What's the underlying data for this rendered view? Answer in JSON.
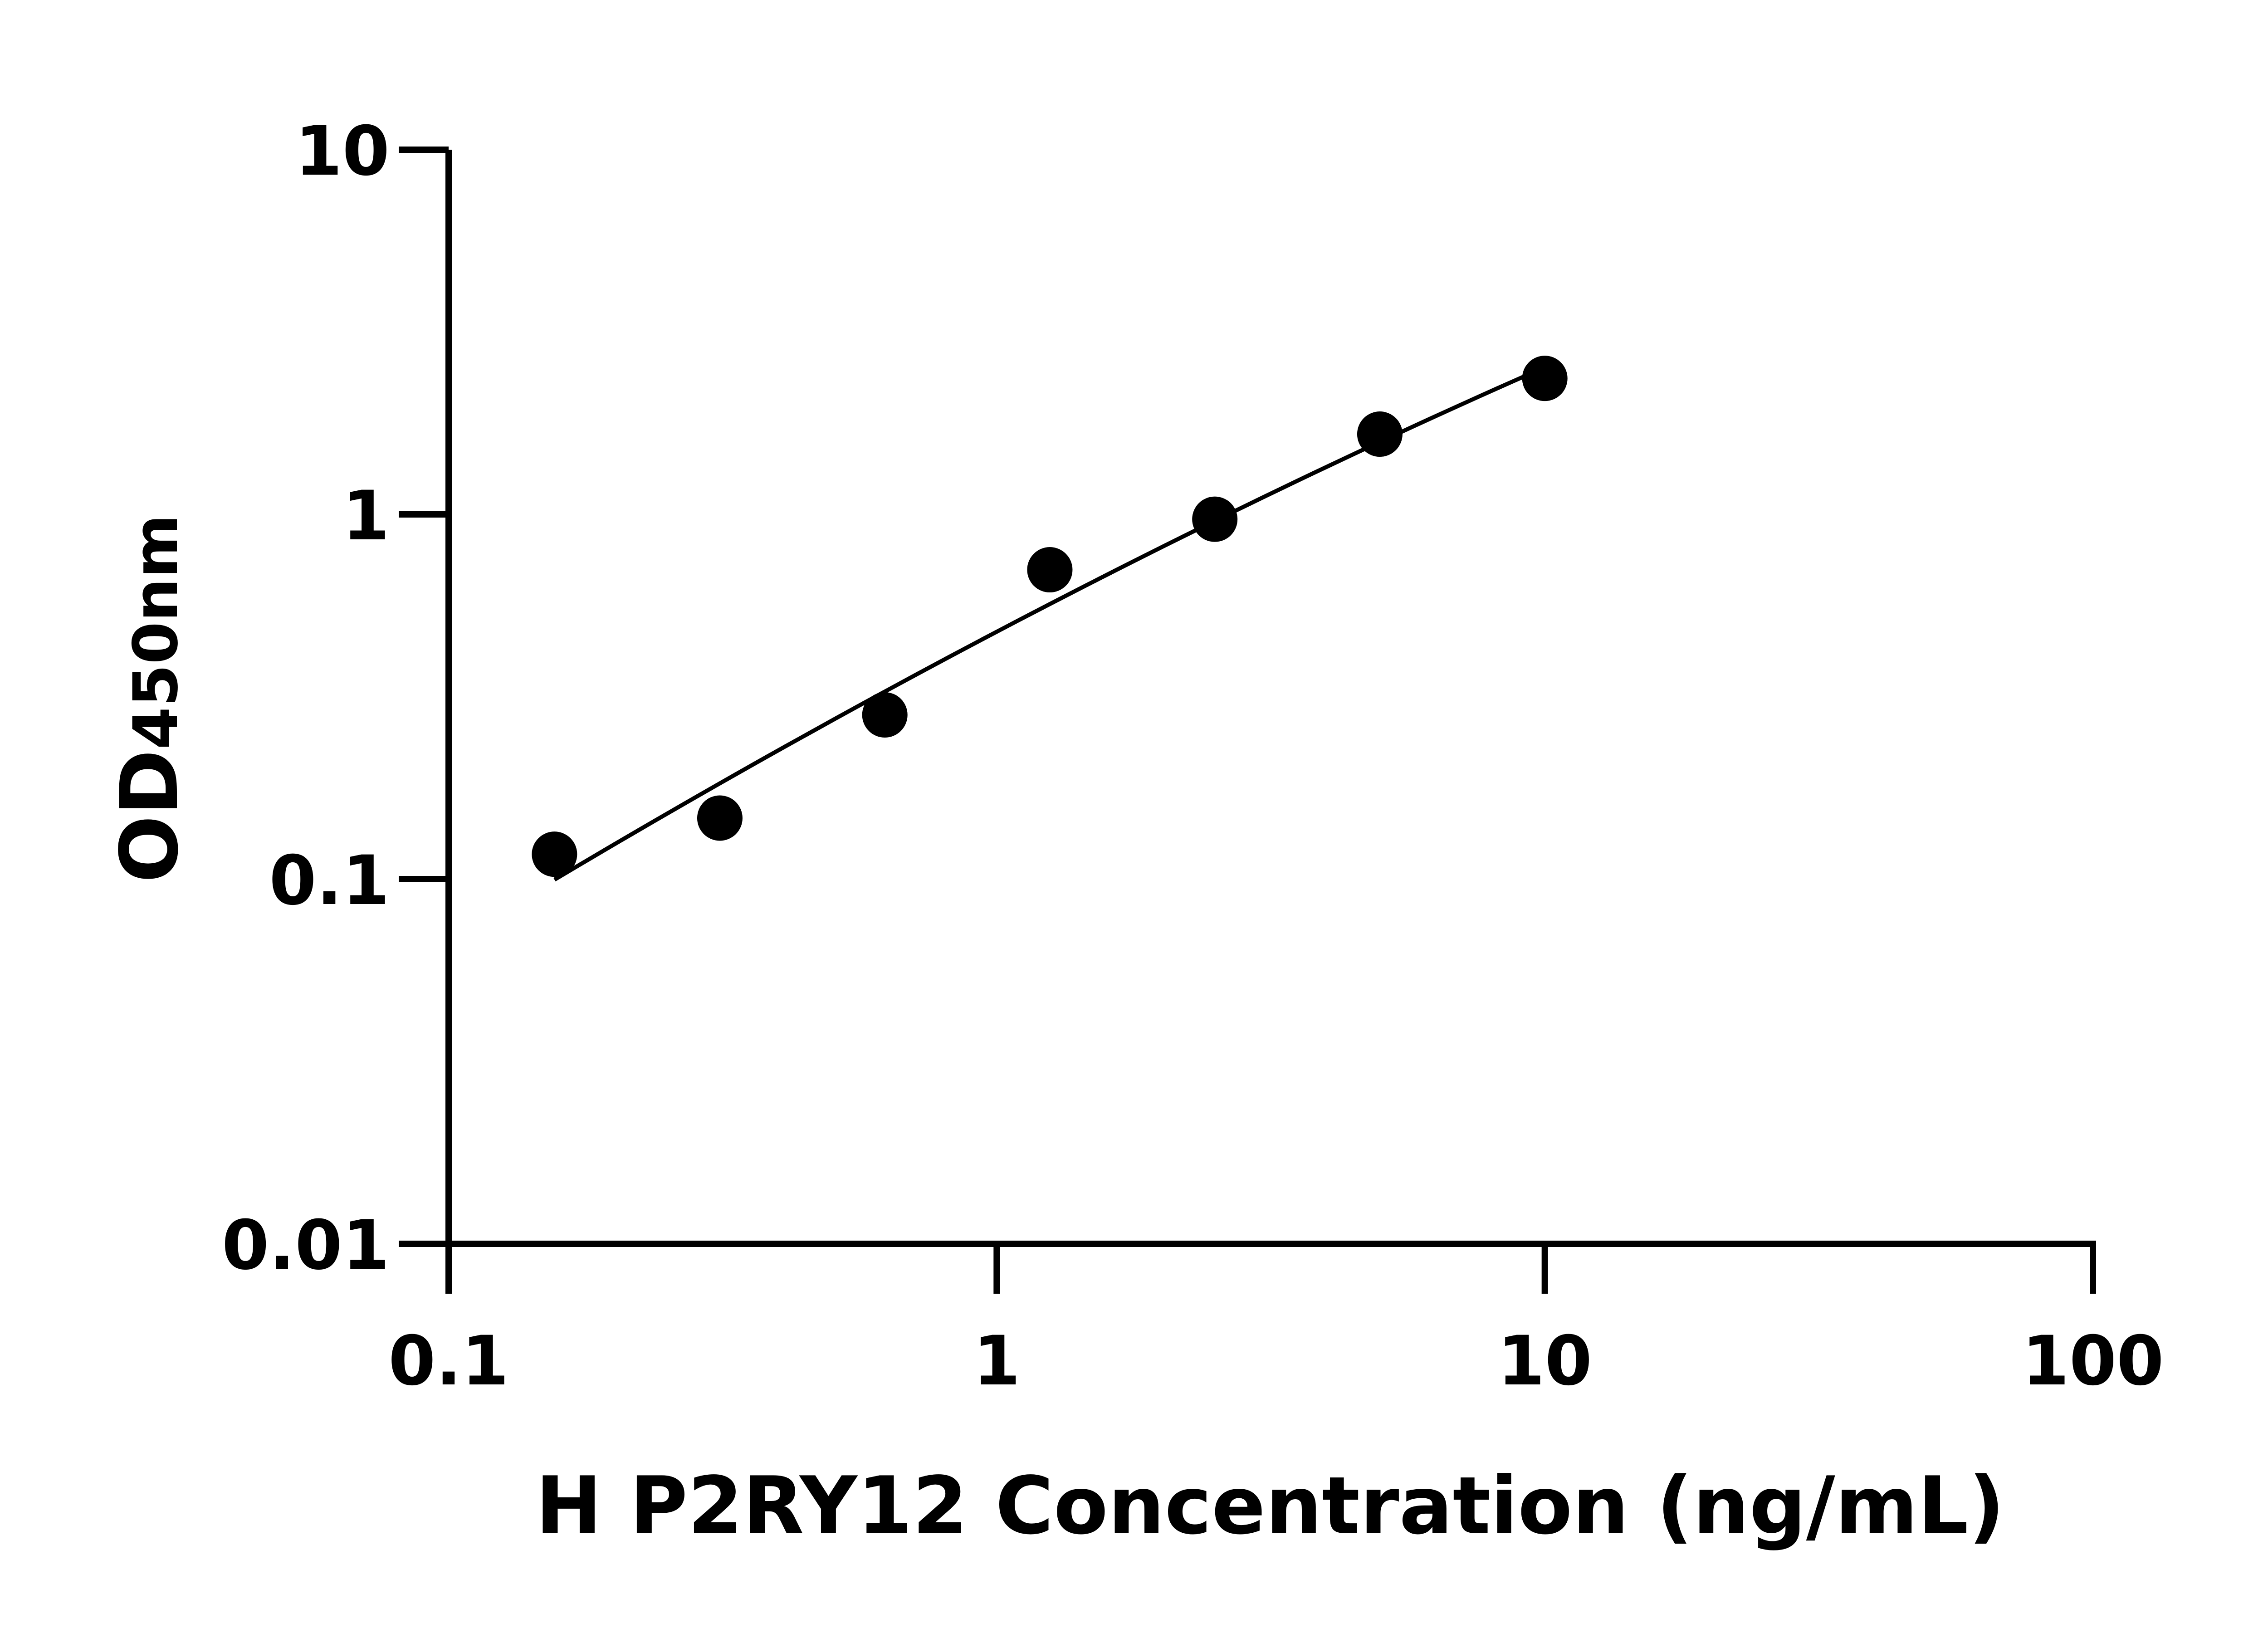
{
  "chart_data": {
    "type": "scatter",
    "title": "",
    "xlabel": "H P2RY12 Concentration (ng/mL)",
    "ylabel_main": "OD",
    "ylabel_sub": "450nm",
    "x_scale": "log",
    "y_scale": "log",
    "xlim": [
      0.1,
      100
    ],
    "ylim": [
      0.01,
      10
    ],
    "x_ticks": [
      "0.1",
      "1",
      "10",
      "100"
    ],
    "y_ticks": [
      "0.01",
      "0.1",
      "1",
      "10"
    ],
    "grid": false,
    "legend": "none",
    "fit_curve": true,
    "marker_color": "#000000",
    "points": [
      {
        "x": 0.156,
        "y": 0.117
      },
      {
        "x": 0.3125,
        "y": 0.147
      },
      {
        "x": 0.625,
        "y": 0.282
      },
      {
        "x": 1.25,
        "y": 0.705
      },
      {
        "x": 2.5,
        "y": 0.97
      },
      {
        "x": 5,
        "y": 1.66
      },
      {
        "x": 10,
        "y": 2.36
      }
    ]
  }
}
